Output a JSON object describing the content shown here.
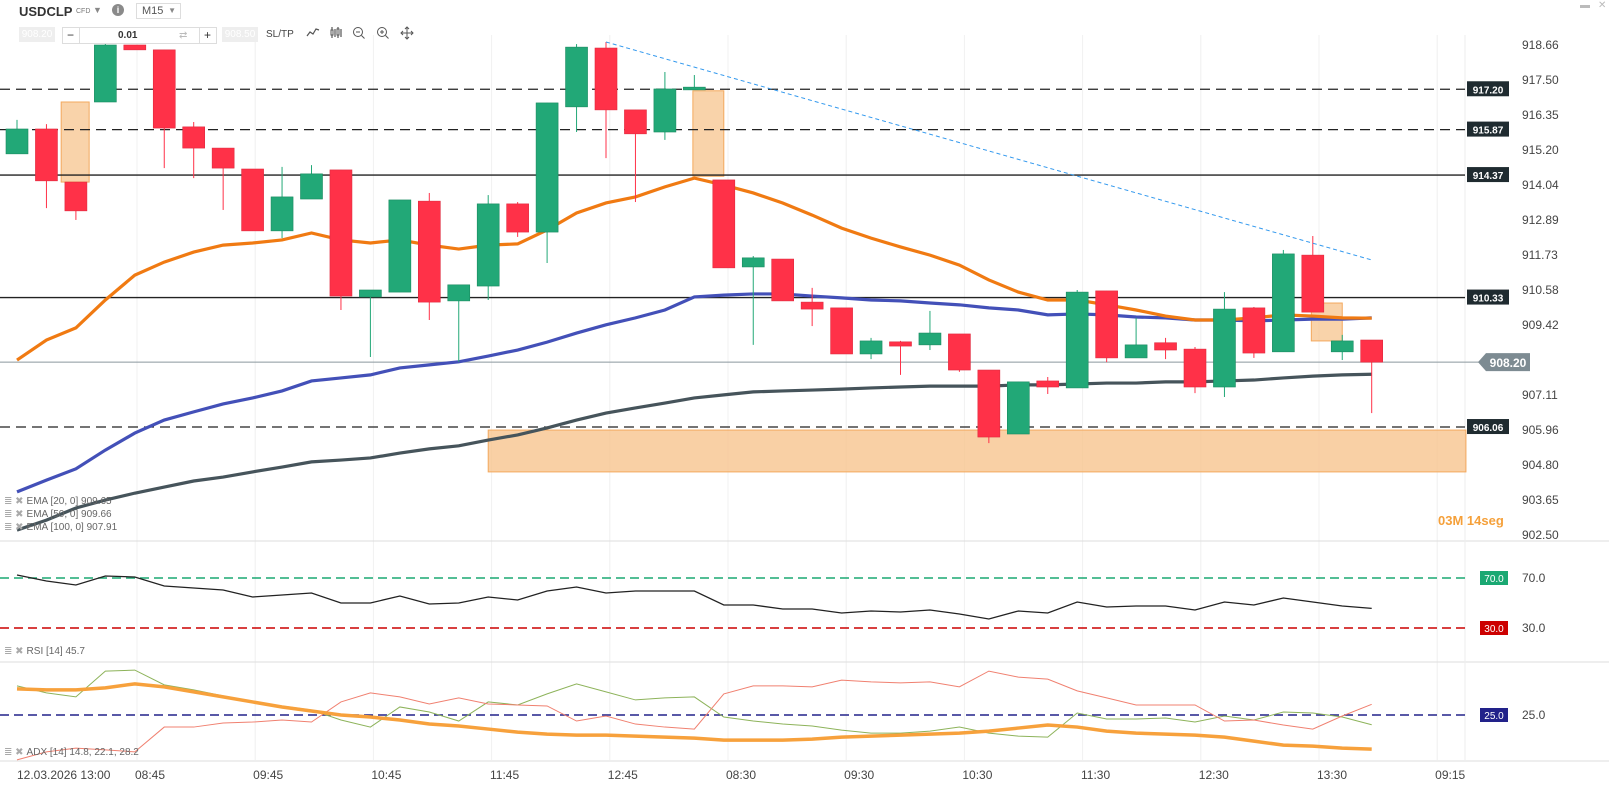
{
  "header": {
    "symbol": "USDCLP",
    "instrument_type": "CFD",
    "timeframe": "M15",
    "sell_price": "908.20",
    "buy_price": "908.50",
    "lot_size": "0.01",
    "minus_label": "−",
    "plus_label": "+",
    "sltp_label": "SL/TP",
    "icons": [
      "chevron-down-icon",
      "info-icon",
      "swap-icon",
      "line-chart-icon",
      "candles-icon",
      "zoom-out-icon",
      "zoom-in-icon",
      "move-icon",
      "minimize-icon",
      "close-icon"
    ]
  },
  "countdown": {
    "minutes": "03M",
    "seconds": "14seg"
  },
  "legend": {
    "ema20": "EMA [20, 0] 909.65",
    "ema50": "EMA [50, 0] 909.66",
    "ema100": "EMA [100, 0] 907.91",
    "rsi": "RSI [14] 45.7",
    "adx": "ADX [14] 14.8, 22.1, 28.2"
  },
  "colors": {
    "bull": "#22a877",
    "bear": "#ff3148",
    "ema20": "#f07a12",
    "ema50": "#4350b8",
    "ema100": "#46545b",
    "zone": "#f7c48e",
    "trendline": "#3399ee",
    "rsi_line": "#222222",
    "rsi_upper": "#1aa872",
    "rsi_lower": "#cc0000",
    "adx": "#f7a13c",
    "plus_di": "#8db35a",
    "minus_di": "#f08070",
    "adx_level": "#22228a"
  },
  "chart_data": [
    {
      "type": "candlestick",
      "title": "USDCLP M15",
      "y_ticks": [
        "918.66",
        "917.50",
        "916.35",
        "915.20",
        "914.04",
        "912.89",
        "911.73",
        "910.58",
        "909.42",
        "907.11",
        "905.96",
        "904.80",
        "903.65",
        "902.50"
      ],
      "ylim": [
        902.5,
        918.66
      ],
      "x_ticks": [
        "12.03.2026 13:00",
        "08:45",
        "09:45",
        "10:45",
        "11:45",
        "12:45",
        "08:30",
        "09:30",
        "10:30",
        "11:30",
        "12:30",
        "13:30",
        "09:15"
      ],
      "current_price": "908.20",
      "candles": [
        [
          915.07,
          916.19,
          915.07,
          915.89
        ],
        [
          915.89,
          916.05,
          913.28,
          914.18
        ],
        [
          914.14,
          914.14,
          912.89,
          913.19
        ],
        [
          916.78,
          918.82,
          916.78,
          918.66
        ],
        [
          918.66,
          918.66,
          918.5,
          918.5
        ],
        [
          918.5,
          918.5,
          914.6,
          915.92
        ],
        [
          915.96,
          916.12,
          914.27,
          915.26
        ],
        [
          915.26,
          915.26,
          913.22,
          914.6
        ],
        [
          914.57,
          914.57,
          912.53,
          912.53
        ],
        [
          912.53,
          914.64,
          912.29,
          913.65
        ],
        [
          913.58,
          914.7,
          913.58,
          914.41
        ],
        [
          914.54,
          914.54,
          909.92,
          910.38
        ],
        [
          910.35,
          910.58,
          908.37,
          910.58
        ],
        [
          910.51,
          913.55,
          910.51,
          913.55
        ],
        [
          913.51,
          913.78,
          909.59,
          910.18
        ],
        [
          910.22,
          910.75,
          908.21,
          910.75
        ],
        [
          910.71,
          913.71,
          910.25,
          913.42
        ],
        [
          913.42,
          913.48,
          912.33,
          912.49
        ],
        [
          912.49,
          916.75,
          911.47,
          916.75
        ],
        [
          916.62,
          918.69,
          915.79,
          918.59
        ],
        [
          918.56,
          918.76,
          914.93,
          916.52
        ],
        [
          916.52,
          916.52,
          913.48,
          915.73
        ],
        [
          915.79,
          917.77,
          915.53,
          917.21
        ],
        [
          917.18,
          917.67,
          917.18,
          917.27
        ],
        [
          914.21,
          914.21,
          911.31,
          911.31
        ],
        [
          911.34,
          911.7,
          908.77,
          911.64
        ],
        [
          911.6,
          911.6,
          910.22,
          910.22
        ],
        [
          910.18,
          910.65,
          909.39,
          909.95
        ],
        [
          909.99,
          909.99,
          908.47,
          908.47
        ],
        [
          908.47,
          909.0,
          908.3,
          908.9
        ],
        [
          908.87,
          908.9,
          907.78,
          908.73
        ],
        [
          908.77,
          909.89,
          908.6,
          909.16
        ],
        [
          909.13,
          909.13,
          907.88,
          907.94
        ],
        [
          907.94,
          907.94,
          905.53,
          905.73
        ],
        [
          905.83,
          907.55,
          905.83,
          907.55
        ],
        [
          907.58,
          907.71,
          907.15,
          907.38
        ],
        [
          907.35,
          910.58,
          907.35,
          910.51
        ],
        [
          910.55,
          910.55,
          908.2,
          908.34
        ],
        [
          908.34,
          909.66,
          908.34,
          908.77
        ],
        [
          908.84,
          909.0,
          908.3,
          908.6
        ],
        [
          908.63,
          908.7,
          907.18,
          907.38
        ],
        [
          907.38,
          910.51,
          907.05,
          909.95
        ],
        [
          909.99,
          910.02,
          908.34,
          908.5
        ],
        [
          908.54,
          911.9,
          908.54,
          911.77
        ],
        [
          911.73,
          912.36,
          909.85,
          909.85
        ],
        [
          908.54,
          909.1,
          908.27,
          908.9
        ],
        [
          908.93,
          908.93,
          906.52,
          908.2
        ]
      ],
      "ema20": [
        908.27,
        908.93,
        909.33,
        910.25,
        911.07,
        911.5,
        911.83,
        912.06,
        912.13,
        912.23,
        912.46,
        912.23,
        912.13,
        912.23,
        912.06,
        911.93,
        912.06,
        912.1,
        912.56,
        913.12,
        913.45,
        913.65,
        913.98,
        914.27,
        914.04,
        913.78,
        913.45,
        913.05,
        912.62,
        912.29,
        912.0,
        911.73,
        911.4,
        910.91,
        910.51,
        910.25,
        910.25,
        910.09,
        909.92,
        909.72,
        909.59,
        909.59,
        909.66,
        909.76,
        909.72,
        909.66,
        909.65
      ],
      "ema50": [
        903.92,
        904.31,
        904.68,
        905.3,
        905.86,
        906.29,
        906.56,
        906.82,
        907.02,
        907.25,
        907.58,
        907.68,
        907.78,
        908.01,
        908.11,
        908.21,
        908.4,
        908.6,
        908.86,
        909.16,
        909.43,
        909.66,
        909.92,
        910.35,
        910.41,
        910.45,
        910.45,
        910.38,
        910.32,
        910.25,
        910.22,
        910.15,
        910.09,
        909.99,
        909.92,
        909.76,
        909.79,
        909.76,
        909.69,
        909.66,
        909.59,
        909.59,
        909.56,
        909.59,
        909.62,
        909.62,
        909.66
      ],
      "ema100": [
        902.66,
        902.99,
        903.39,
        903.65,
        903.88,
        904.08,
        904.28,
        904.41,
        904.58,
        904.74,
        904.91,
        904.97,
        905.04,
        905.2,
        905.34,
        905.44,
        905.63,
        905.8,
        906.03,
        906.29,
        906.52,
        906.69,
        906.85,
        907.02,
        907.12,
        907.22,
        907.25,
        907.28,
        907.31,
        907.35,
        907.38,
        907.41,
        907.41,
        907.41,
        907.45,
        907.45,
        907.48,
        907.51,
        907.51,
        907.55,
        907.55,
        907.58,
        907.61,
        907.68,
        907.74,
        907.78,
        907.8
      ],
      "horizontal_levels": [
        {
          "price": "917.20",
          "style": "dashed"
        },
        {
          "price": "915.87",
          "style": "dashed"
        },
        {
          "price": "914.37",
          "style": "solid"
        },
        {
          "price": "910.33",
          "style": "solid"
        },
        {
          "price": "906.06",
          "style": "dashed"
        }
      ],
      "trendline": {
        "start_index": 20,
        "start_price": 918.76,
        "end_index": 46,
        "end_price": 911.57
      },
      "zones": [
        {
          "start_index": 16,
          "end_index": 49.2,
          "top": 905.96,
          "bottom": 904.58
        },
        {
          "start_index": 1.5,
          "end_index": 2.45,
          "top": 916.78,
          "bottom": 914.14
        },
        {
          "start_index": 22.95,
          "end_index": 24,
          "top": 917.15,
          "bottom": 914.33
        },
        {
          "start_index": 43.95,
          "end_index": 45,
          "top": 910.15,
          "bottom": 908.9
        }
      ]
    },
    {
      "type": "line",
      "title": "RSI [14]",
      "levels": [
        "70.0",
        "30.0"
      ],
      "values": [
        72.4,
        67.6,
        64.4,
        71.6,
        70.8,
        63.6,
        62.0,
        60.4,
        54.8,
        56.4,
        58.0,
        50.0,
        50.0,
        55.6,
        49.2,
        50.0,
        54.8,
        52.4,
        59.6,
        62.8,
        58.0,
        59.6,
        59.6,
        59.6,
        48.4,
        48.4,
        45.2,
        45.2,
        42.0,
        43.6,
        42.8,
        44.4,
        41.2,
        37.2,
        43.6,
        42.0,
        50.8,
        46.8,
        47.6,
        47.6,
        44.4,
        50.8,
        48.4,
        54.0,
        50.8,
        47.6,
        45.7
      ]
    },
    {
      "type": "line",
      "title": "ADX [14]",
      "levels": [
        "25.0"
      ],
      "series": [
        {
          "name": "ADX",
          "values": [
            32.8,
            32.5,
            32.5,
            33.1,
            34.3,
            33.4,
            31.9,
            30.4,
            28.9,
            27.4,
            26.2,
            25.0,
            24.4,
            23.5,
            22.3,
            21.7,
            20.8,
            19.9,
            19.3,
            19.0,
            19.0,
            18.7,
            18.4,
            18.1,
            17.5,
            17.5,
            17.5,
            17.8,
            18.4,
            18.7,
            19.0,
            19.3,
            19.6,
            20.2,
            21.1,
            22.0,
            21.4,
            20.2,
            19.6,
            19.3,
            19.0,
            18.4,
            17.2,
            16.0,
            15.7,
            15.1,
            14.8
          ]
        },
        {
          "name": "+DI",
          "values": [
            33.7,
            31.6,
            30.4,
            38.1,
            38.4,
            34.0,
            32.5,
            30.7,
            28.6,
            27.7,
            26.5,
            23.5,
            21.4,
            27.4,
            25.9,
            23.2,
            28.9,
            28.0,
            31.3,
            34.3,
            31.9,
            29.5,
            30.1,
            30.4,
            24.4,
            23.2,
            22.3,
            21.7,
            20.5,
            19.6,
            19.6,
            20.2,
            21.4,
            19.6,
            18.7,
            18.4,
            25.6,
            23.8,
            23.8,
            24.1,
            22.9,
            24.7,
            23.5,
            25.9,
            25.6,
            24.4,
            22.1
          ]
        },
        {
          "name": "-DI",
          "values": [
            11.6,
            14.0,
            15.1,
            14.6,
            14.0,
            21.4,
            21.4,
            22.6,
            22.9,
            23.5,
            22.9,
            28.9,
            31.6,
            30.4,
            28.3,
            30.1,
            28.3,
            28.0,
            27.7,
            23.2,
            24.7,
            22.3,
            21.4,
            20.8,
            31.3,
            33.7,
            33.7,
            33.4,
            35.4,
            34.9,
            34.6,
            34.9,
            33.4,
            38.1,
            36.3,
            35.7,
            32.2,
            30.1,
            28.0,
            28.0,
            28.0,
            23.2,
            23.5,
            22.0,
            20.8,
            24.7,
            28.2
          ]
        }
      ]
    }
  ]
}
